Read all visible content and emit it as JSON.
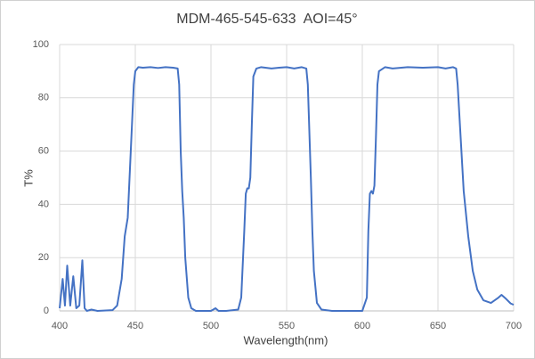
{
  "chart_data": {
    "type": "line",
    "title": "MDM-465-545-633  AOI=45°",
    "x_label": "Wavelength(nm)",
    "y_label": "T%",
    "xlim": [
      400,
      700
    ],
    "xticks": [
      400,
      450,
      500,
      550,
      600,
      650,
      700
    ],
    "ylim": [
      0,
      100
    ],
    "yticks": [
      0,
      20,
      40,
      60,
      80,
      100
    ],
    "grid": true,
    "x": [
      400,
      402,
      403.5,
      405,
      407,
      409,
      411,
      413,
      415,
      416.5,
      418,
      421,
      425,
      435,
      438,
      441,
      443,
      445,
      447,
      449,
      450,
      452,
      455,
      460,
      465,
      470,
      475,
      478,
      479,
      480,
      481,
      482,
      483,
      485,
      487,
      490,
      500,
      503,
      505,
      510,
      518,
      520,
      522,
      523,
      524,
      525,
      526,
      527,
      528,
      530,
      533,
      540,
      545,
      550,
      555,
      560,
      563,
      564,
      566,
      567,
      568,
      570,
      573,
      580,
      600,
      603,
      604,
      605,
      606,
      607,
      608,
      609,
      610,
      611,
      615,
      620,
      630,
      640,
      650,
      655,
      660,
      662,
      663,
      665,
      667,
      670,
      673,
      676,
      680,
      685,
      690,
      692,
      695,
      698,
      700
    ],
    "series": [
      {
        "name": "T%",
        "color": "#4472c4",
        "values": [
          1,
          12,
          2,
          17,
          2,
          13,
          1,
          2,
          19,
          1,
          0,
          0.5,
          0,
          0.3,
          2,
          12,
          28,
          35,
          60,
          85,
          90,
          91.5,
          91.3,
          91.5,
          91.2,
          91.5,
          91.3,
          91,
          85,
          60,
          45,
          35,
          20,
          5,
          1,
          0,
          0,
          1,
          0,
          0,
          0.5,
          5,
          30,
          44,
          46,
          46,
          50,
          70,
          88,
          91,
          91.5,
          91,
          91.3,
          91.5,
          91,
          91.5,
          91,
          85,
          50,
          30,
          15,
          3,
          0.5,
          0,
          0,
          5,
          30,
          44,
          45,
          44,
          47,
          65,
          85,
          90,
          91.5,
          91,
          91.5,
          91.3,
          91.5,
          91,
          91.5,
          91,
          85,
          65,
          45,
          28,
          15,
          8,
          4,
          3,
          5,
          6,
          4.5,
          2.8,
          2.3
        ]
      }
    ]
  }
}
